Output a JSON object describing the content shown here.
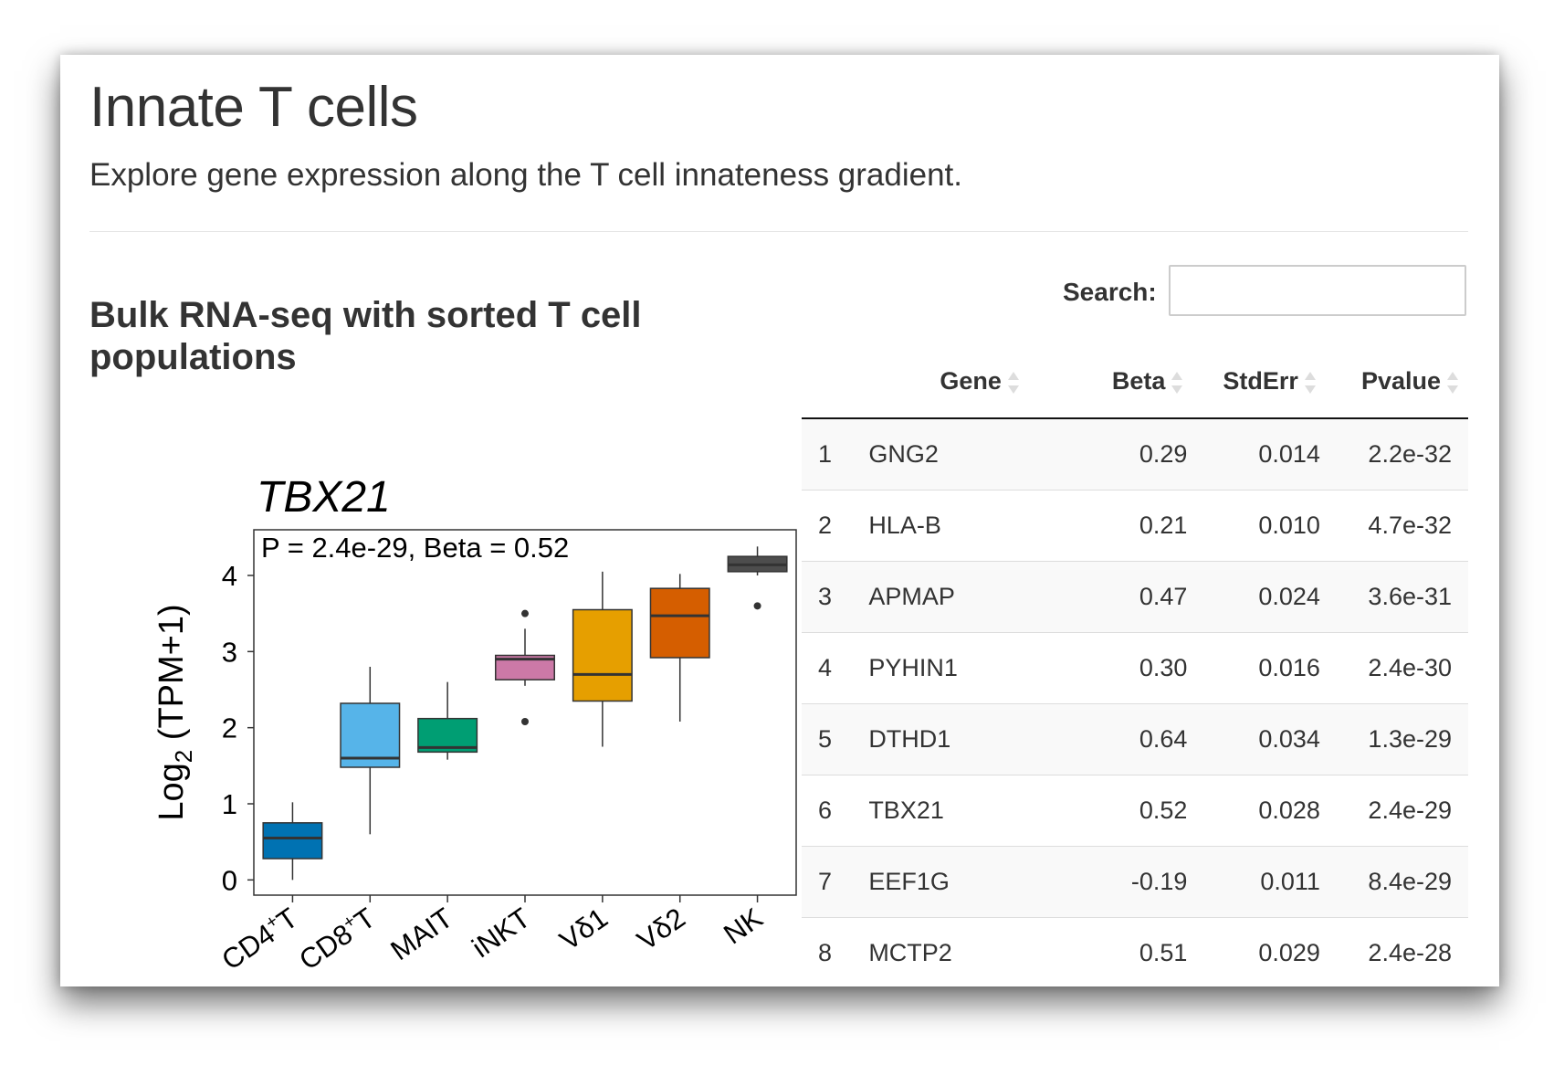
{
  "page": {
    "title": "Innate T cells",
    "subtitle": "Explore gene expression along the T cell innateness gradient."
  },
  "section": {
    "title": "Bulk RNA-seq with sorted T cell populations"
  },
  "search": {
    "label": "Search:",
    "placeholder": "",
    "value": ""
  },
  "table": {
    "columns": [
      "",
      "Gene",
      "Beta",
      "StdErr",
      "Pvalue"
    ],
    "rows": [
      [
        "1",
        "GNG2",
        "0.29",
        "0.014",
        "2.2e-32"
      ],
      [
        "2",
        "HLA-B",
        "0.21",
        "0.010",
        "4.7e-32"
      ],
      [
        "3",
        "APMAP",
        "0.47",
        "0.024",
        "3.6e-31"
      ],
      [
        "4",
        "PYHIN1",
        "0.30",
        "0.016",
        "2.4e-30"
      ],
      [
        "5",
        "DTHD1",
        "0.64",
        "0.034",
        "1.3e-29"
      ],
      [
        "6",
        "TBX21",
        "0.52",
        "0.028",
        "2.4e-29"
      ],
      [
        "7",
        "EEF1G",
        "-0.19",
        "0.011",
        "8.4e-29"
      ],
      [
        "8",
        "MCTP2",
        "0.51",
        "0.029",
        "2.4e-28"
      ]
    ]
  },
  "chart_data": {
    "type": "box",
    "title": "TBX21",
    "annotation": "P = 2.4e-29, Beta = 0.52",
    "ylabel": "Log2 (TPM+1)",
    "ylabel_base": "Log",
    "ylabel_sub": "2",
    "ylabel_rest": " (TPM+1)",
    "ylim": [
      -0.2,
      4.6
    ],
    "yticks": [
      0,
      1,
      2,
      3,
      4
    ],
    "grid": false,
    "categories": [
      "CD4+T",
      "CD8+T",
      "MAIT",
      "iNKT",
      "Vδ1",
      "Vδ2",
      "NK"
    ],
    "category_labels": [
      {
        "base": "CD4",
        "sup": "+",
        "rest": "T"
      },
      {
        "base": "CD8",
        "sup": "+",
        "rest": "T"
      },
      {
        "base": "MAIT",
        "sup": "",
        "rest": ""
      },
      {
        "base": "iNKT",
        "sup": "",
        "rest": ""
      },
      {
        "base": "Vδ1",
        "sup": "",
        "rest": ""
      },
      {
        "base": "Vδ2",
        "sup": "",
        "rest": ""
      },
      {
        "base": "NK",
        "sup": "",
        "rest": ""
      }
    ],
    "boxes": [
      {
        "whisker_low": 0.0,
        "q1": 0.28,
        "median": 0.55,
        "q3": 0.75,
        "whisker_high": 1.02,
        "outliers": [],
        "color": "#0072B2"
      },
      {
        "whisker_low": 0.6,
        "q1": 1.48,
        "median": 1.6,
        "q3": 2.32,
        "whisker_high": 2.8,
        "outliers": [],
        "color": "#56B4E9"
      },
      {
        "whisker_low": 1.58,
        "q1": 1.68,
        "median": 1.74,
        "q3": 2.12,
        "whisker_high": 2.6,
        "outliers": [],
        "color": "#009E73"
      },
      {
        "whisker_low": 2.55,
        "q1": 2.63,
        "median": 2.9,
        "q3": 2.95,
        "whisker_high": 3.3,
        "outliers": [
          3.5,
          2.08
        ],
        "color": "#CC79A7"
      },
      {
        "whisker_low": 1.75,
        "q1": 2.35,
        "median": 2.7,
        "q3": 3.55,
        "whisker_high": 4.05,
        "outliers": [],
        "color": "#E69F00"
      },
      {
        "whisker_low": 2.08,
        "q1": 2.92,
        "median": 3.47,
        "q3": 3.83,
        "whisker_high": 4.02,
        "outliers": [],
        "color": "#D55E00"
      },
      {
        "whisker_low": 4.0,
        "q1": 4.05,
        "median": 4.14,
        "q3": 4.25,
        "whisker_high": 4.38,
        "outliers": [
          3.6
        ],
        "color": "#4D4D4D"
      }
    ]
  }
}
